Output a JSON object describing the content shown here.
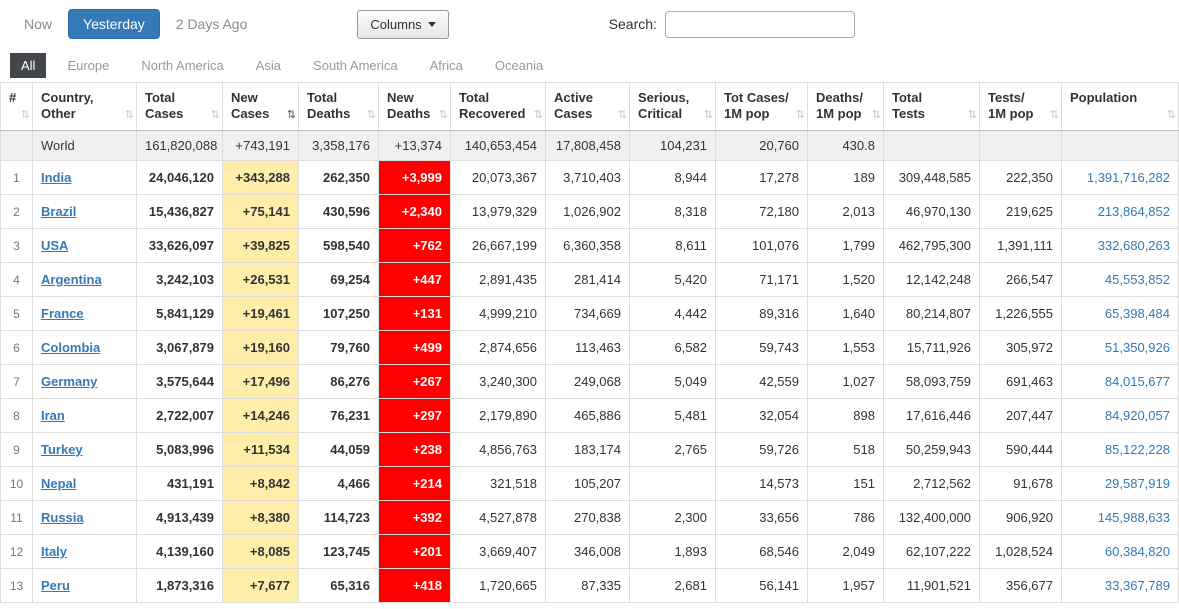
{
  "toolbar": {
    "now": "Now",
    "yesterday": "Yesterday",
    "two_days_ago": "2 Days Ago",
    "columns_button": "Columns",
    "search_label": "Search:",
    "search_value": ""
  },
  "continent_tabs": [
    {
      "label": "All",
      "active": true
    },
    {
      "label": "Europe",
      "active": false
    },
    {
      "label": "North America",
      "active": false
    },
    {
      "label": "Asia",
      "active": false
    },
    {
      "label": "South America",
      "active": false
    },
    {
      "label": "Africa",
      "active": false
    },
    {
      "label": "Oceania",
      "active": false
    }
  ],
  "colors": {
    "accent_button": "#337ab7",
    "new_cases_bg": "#FFEEAA",
    "new_deaths_bg": "#FF0000",
    "link": "#337ab7",
    "world_row_bg": "#f0f0f0",
    "active_tab_bg": "#43464b"
  },
  "table": {
    "sort_glyph": "⇅",
    "headers": [
      {
        "id": "rank",
        "lines": [
          "#"
        ],
        "sortable": true,
        "sorted": false
      },
      {
        "id": "country",
        "lines": [
          "Country,",
          "Other"
        ],
        "sortable": true,
        "sorted": false
      },
      {
        "id": "total-cases",
        "lines": [
          "Total",
          "Cases"
        ],
        "sortable": true,
        "sorted": false
      },
      {
        "id": "new-cases",
        "lines": [
          "New",
          "Cases"
        ],
        "sortable": true,
        "sorted": true
      },
      {
        "id": "total-deaths",
        "lines": [
          "Total",
          "Deaths"
        ],
        "sortable": true,
        "sorted": false
      },
      {
        "id": "new-deaths",
        "lines": [
          "New",
          "Deaths"
        ],
        "sortable": true,
        "sorted": false
      },
      {
        "id": "total-recovered",
        "lines": [
          "Total",
          "Recovered"
        ],
        "sortable": true,
        "sorted": false
      },
      {
        "id": "active-cases",
        "lines": [
          "Active",
          "Cases"
        ],
        "sortable": true,
        "sorted": false
      },
      {
        "id": "serious-critical",
        "lines": [
          "Serious,",
          "Critical"
        ],
        "sortable": true,
        "sorted": false
      },
      {
        "id": "tot-cases-1m-pop",
        "lines": [
          "Tot Cases/",
          "1M pop"
        ],
        "sortable": true,
        "sorted": false
      },
      {
        "id": "deaths-1m-pop",
        "lines": [
          "Deaths/",
          "1M pop"
        ],
        "sortable": true,
        "sorted": false
      },
      {
        "id": "total-tests",
        "lines": [
          "Total",
          "Tests"
        ],
        "sortable": true,
        "sorted": false
      },
      {
        "id": "tests-1m-pop",
        "lines": [
          "Tests/",
          "1M pop"
        ],
        "sortable": true,
        "sorted": false
      },
      {
        "id": "population",
        "lines": [
          "Population"
        ],
        "sortable": true,
        "sorted": false
      }
    ],
    "world_row": {
      "rank": "",
      "name": "World",
      "cells": [
        "161,820,088",
        "+743,191",
        "3,358,176",
        "+13,374",
        "140,653,454",
        "17,808,458",
        "104,231",
        "20,760",
        "430.8",
        "",
        "",
        ""
      ]
    },
    "rows": [
      {
        "rank": "1",
        "name": "India",
        "cells": [
          "24,046,120",
          "+343,288",
          "262,350",
          "+3,999",
          "20,073,367",
          "3,710,403",
          "8,944",
          "17,278",
          "189",
          "309,448,585",
          "222,350",
          "1,391,716,282"
        ]
      },
      {
        "rank": "2",
        "name": "Brazil",
        "cells": [
          "15,436,827",
          "+75,141",
          "430,596",
          "+2,340",
          "13,979,329",
          "1,026,902",
          "8,318",
          "72,180",
          "2,013",
          "46,970,130",
          "219,625",
          "213,864,852"
        ]
      },
      {
        "rank": "3",
        "name": "USA",
        "cells": [
          "33,626,097",
          "+39,825",
          "598,540",
          "+762",
          "26,667,199",
          "6,360,358",
          "8,611",
          "101,076",
          "1,799",
          "462,795,300",
          "1,391,111",
          "332,680,263"
        ]
      },
      {
        "rank": "4",
        "name": "Argentina",
        "cells": [
          "3,242,103",
          "+26,531",
          "69,254",
          "+447",
          "2,891,435",
          "281,414",
          "5,420",
          "71,171",
          "1,520",
          "12,142,248",
          "266,547",
          "45,553,852"
        ]
      },
      {
        "rank": "5",
        "name": "France",
        "cells": [
          "5,841,129",
          "+19,461",
          "107,250",
          "+131",
          "4,999,210",
          "734,669",
          "4,442",
          "89,316",
          "1,640",
          "80,214,807",
          "1,226,555",
          "65,398,484"
        ]
      },
      {
        "rank": "6",
        "name": "Colombia",
        "cells": [
          "3,067,879",
          "+19,160",
          "79,760",
          "+499",
          "2,874,656",
          "113,463",
          "6,582",
          "59,743",
          "1,553",
          "15,711,926",
          "305,972",
          "51,350,926"
        ]
      },
      {
        "rank": "7",
        "name": "Germany",
        "cells": [
          "3,575,644",
          "+17,496",
          "86,276",
          "+267",
          "3,240,300",
          "249,068",
          "5,049",
          "42,559",
          "1,027",
          "58,093,759",
          "691,463",
          "84,015,677"
        ]
      },
      {
        "rank": "8",
        "name": "Iran",
        "cells": [
          "2,722,007",
          "+14,246",
          "76,231",
          "+297",
          "2,179,890",
          "465,886",
          "5,481",
          "32,054",
          "898",
          "17,616,446",
          "207,447",
          "84,920,057"
        ]
      },
      {
        "rank": "9",
        "name": "Turkey",
        "cells": [
          "5,083,996",
          "+11,534",
          "44,059",
          "+238",
          "4,856,763",
          "183,174",
          "2,765",
          "59,726",
          "518",
          "50,259,943",
          "590,444",
          "85,122,228"
        ]
      },
      {
        "rank": "10",
        "name": "Nepal",
        "cells": [
          "431,191",
          "+8,842",
          "4,466",
          "+214",
          "321,518",
          "105,207",
          "",
          "14,573",
          "151",
          "2,712,562",
          "91,678",
          "29,587,919"
        ]
      },
      {
        "rank": "11",
        "name": "Russia",
        "cells": [
          "4,913,439",
          "+8,380",
          "114,723",
          "+392",
          "4,527,878",
          "270,838",
          "2,300",
          "33,656",
          "786",
          "132,400,000",
          "906,920",
          "145,988,633"
        ]
      },
      {
        "rank": "12",
        "name": "Italy",
        "cells": [
          "4,139,160",
          "+8,085",
          "123,745",
          "+201",
          "3,669,407",
          "346,008",
          "1,893",
          "68,546",
          "2,049",
          "62,107,222",
          "1,028,524",
          "60,384,820"
        ]
      },
      {
        "rank": "13",
        "name": "Peru",
        "cells": [
          "1,873,316",
          "+7,677",
          "65,316",
          "+418",
          "1,720,665",
          "87,335",
          "2,681",
          "56,141",
          "1,957",
          "11,901,521",
          "356,677",
          "33,367,789"
        ]
      }
    ]
  }
}
